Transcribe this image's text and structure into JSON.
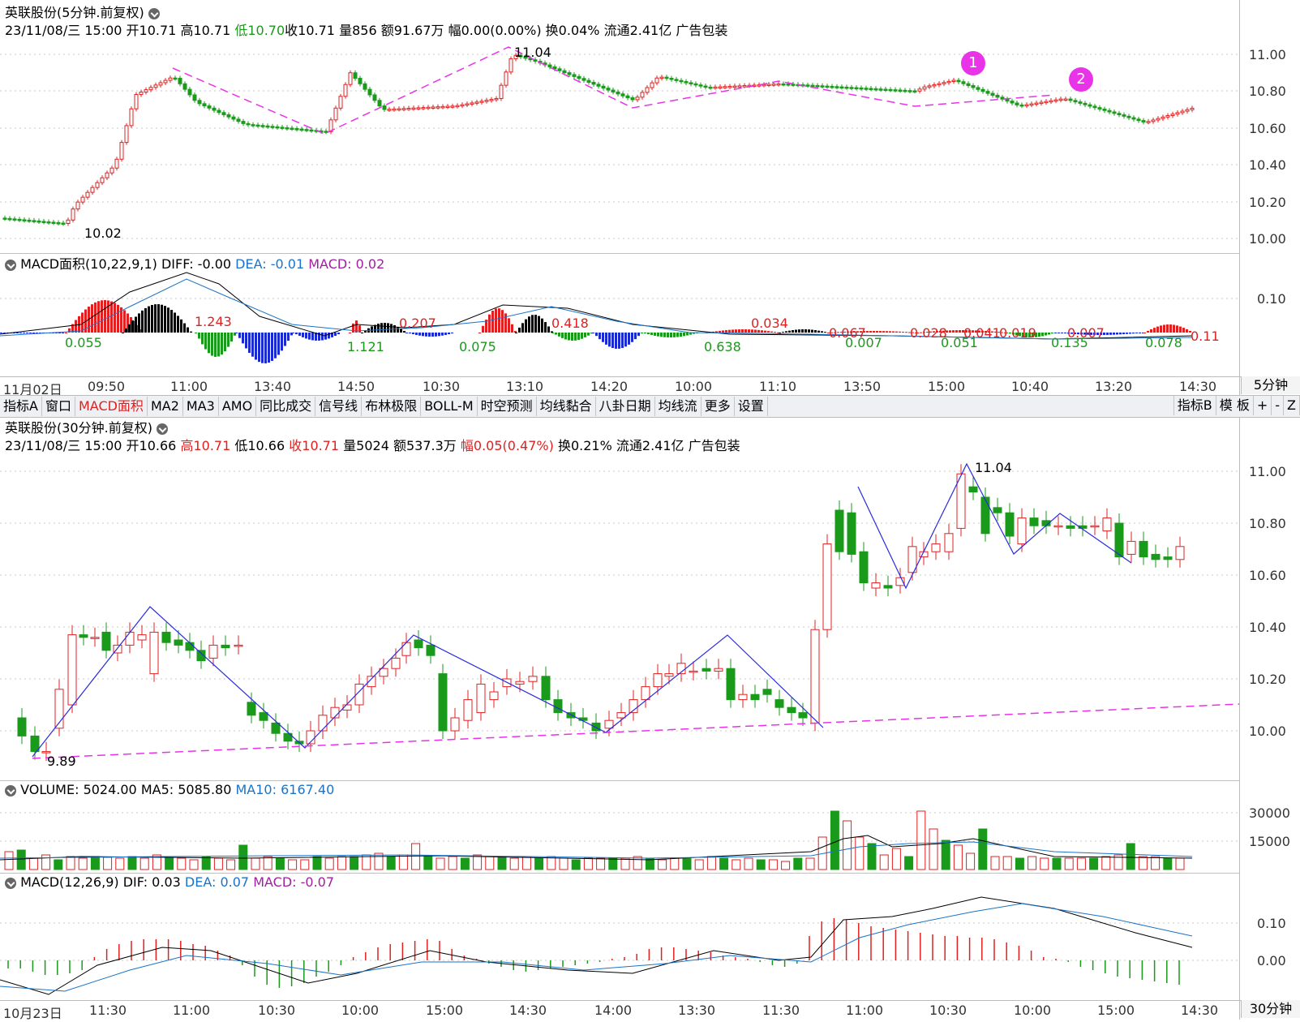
{
  "top": {
    "title": "英联股份(5分钟.前复权)",
    "info": {
      "date": "23/11/08/三 15:00",
      "open": "开10.71",
      "high": "高10.71",
      "low": "低10.70",
      "close": "收10.71",
      "vol": "量856",
      "amount": "额91.67万",
      "change": "幅0.00(0.00%)",
      "turnover": "换0.04%",
      "float": "流通2.41亿",
      "industry": "广告包装"
    },
    "price_axis": [
      "11.00",
      "10.80",
      "10.60",
      "10.40",
      "10.20",
      "10.00"
    ],
    "annotations": {
      "max": "11.04",
      "min": "10.02",
      "badge1": "1",
      "badge2": "2"
    },
    "macd": {
      "label": "MACD面积(10,22,9,1)",
      "diff": "DIFF: -0.00",
      "dea": "DEA: -0.01",
      "macd": "MACD: 0.02",
      "axis": "0.10",
      "areas": [
        "0.055",
        "1.243",
        "1.121",
        "0.207",
        "0.075",
        "0.418",
        "0.638",
        "0.034",
        "0.007",
        "0.067",
        "0.051",
        "0.028",
        "0.041",
        "0.019",
        "0.135",
        "0.007",
        "0.078",
        "0.11"
      ]
    },
    "dates": [
      "11月02日",
      "09:50",
      "11:00",
      "13:40",
      "14:50",
      "10:30",
      "13:10",
      "14:20",
      "10:00",
      "11:10",
      "13:50",
      "15:00",
      "10:40",
      "13:20",
      "14:30"
    ],
    "period": "5分钟"
  },
  "toolbar": {
    "items": [
      "指标A",
      "窗口",
      "MACD面积",
      "MA2",
      "MA3",
      "AMO",
      "同比成交",
      "信号线",
      "布林极限",
      "BOLL-M",
      "时空预测",
      "均线黏合",
      "八卦日期",
      "均线流",
      "更多",
      "设置"
    ],
    "right": [
      "指标B",
      "模 板",
      "+",
      "-",
      "Z"
    ]
  },
  "bottom": {
    "title": "英联股份(30分钟.前复权)",
    "info": {
      "date": "23/11/08/三 15:00",
      "open": "开10.66",
      "high": "高10.71",
      "low": "低10.66",
      "close": "收10.71",
      "vol": "量5024",
      "amount": "额537.3万",
      "change": "幅0.05(0.47%)",
      "turnover": "换0.21%",
      "float": "流通2.41亿",
      "industry": "广告包装"
    },
    "price_axis": [
      "11.00",
      "10.80",
      "10.60",
      "10.40",
      "10.20",
      "10.00"
    ],
    "annotations": {
      "max": "11.04",
      "min": "9.89"
    },
    "volume": {
      "label": "VOLUME: 5024.00",
      "ma5": "MA5: 5085.80",
      "ma10": "MA10: 6167.40",
      "axis": [
        "30000",
        "15000"
      ]
    },
    "macd": {
      "label": "MACD(12,26,9)",
      "dif": "DIF: 0.03",
      "dea": "DEA: 0.07",
      "macd": "MACD: -0.07",
      "axis": [
        "0.10",
        "0.00"
      ]
    },
    "dates": [
      "10月23日",
      "11:30",
      "11:00",
      "10:30",
      "10:00",
      "15:00",
      "14:30",
      "14:00",
      "13:30",
      "11:30",
      "11:00",
      "10:30",
      "10:00",
      "15:00",
      "14:30"
    ],
    "period": "30分钟"
  },
  "colors": {
    "up": "#e02020",
    "down": "#1a9a1a",
    "trend": "#e833e8",
    "zigzag": "#2a2ae0",
    "dea": "#1a73c8",
    "diff": "#000000"
  }
}
